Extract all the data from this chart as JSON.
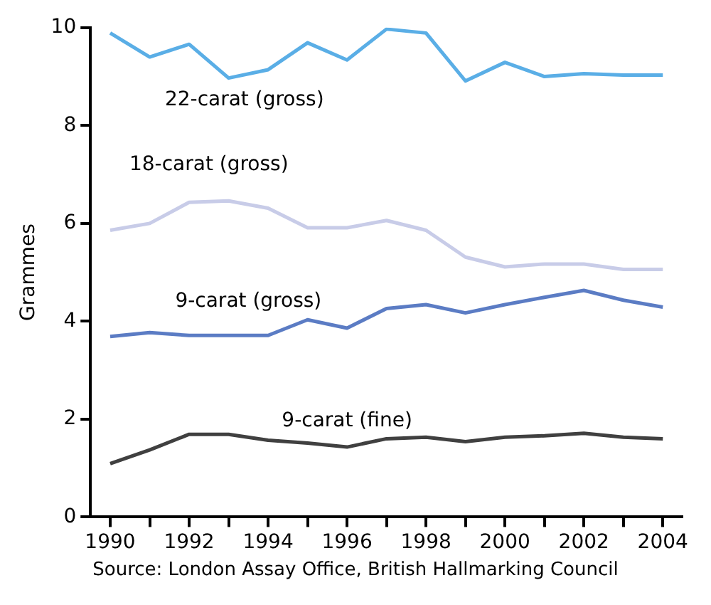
{
  "chart_data": {
    "type": "line",
    "ylabel": "Grammes",
    "x": [
      1990,
      1991,
      1992,
      1993,
      1994,
      1995,
      1996,
      1997,
      1998,
      1999,
      2000,
      2001,
      2002,
      2003,
      2004
    ],
    "xlim": [
      1989.5,
      2004.5
    ],
    "xticks": [
      1990,
      {
        "value": 1991,
        "label": null
      },
      1992,
      {
        "value": 1993,
        "label": null
      },
      1994,
      {
        "value": 1995,
        "label": null
      },
      1996,
      {
        "value": 1997,
        "label": null
      },
      1998,
      {
        "value": 1999,
        "label": null
      },
      2000,
      {
        "value": 2001,
        "label": null
      },
      2002,
      {
        "value": 2003,
        "label": null
      },
      2004
    ],
    "ylim": [
      0,
      10
    ],
    "yticks": [
      0,
      2,
      4,
      6,
      8,
      10
    ],
    "grid": false,
    "legend": false,
    "marker": "none",
    "line_style": "solid",
    "series": [
      {
        "name": "22-carat (gross)",
        "color": "#5aaee6",
        "values": [
          9.89,
          9.4,
          9.66,
          8.97,
          9.14,
          9.69,
          9.34,
          9.97,
          9.89,
          8.91,
          9.29,
          9.0,
          9.06,
          9.03,
          9.03
        ]
      },
      {
        "name": "18-carat (gross)",
        "color": "#c8cce8",
        "values": [
          5.86,
          6.0,
          6.43,
          6.46,
          6.31,
          5.91,
          5.91,
          6.06,
          5.86,
          5.31,
          5.11,
          5.17,
          5.17,
          5.06,
          5.06
        ]
      },
      {
        "name": "9-carat (gross)",
        "color": "#5b7cc4",
        "values": [
          3.69,
          3.77,
          3.71,
          3.71,
          3.71,
          4.03,
          3.86,
          4.26,
          4.34,
          4.17,
          4.34,
          4.49,
          4.63,
          4.43,
          4.29
        ]
      },
      {
        "name": "9-carat (fine)",
        "color": "#404040",
        "values": [
          1.09,
          1.37,
          1.69,
          1.69,
          1.57,
          1.51,
          1.43,
          1.6,
          1.63,
          1.54,
          1.63,
          1.66,
          1.71,
          1.63,
          1.6
        ]
      }
    ],
    "annotations": [
      "Source: London Assay Office, British Hallmarking Council"
    ]
  }
}
